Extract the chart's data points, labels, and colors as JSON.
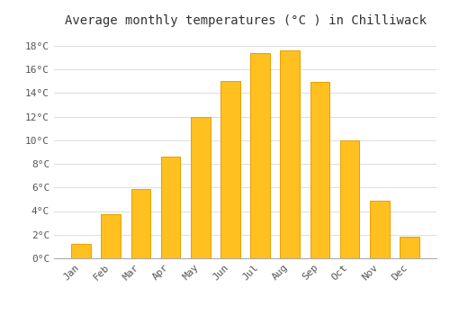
{
  "months": [
    "Jan",
    "Feb",
    "Mar",
    "Apr",
    "May",
    "Jun",
    "Jul",
    "Aug",
    "Sep",
    "Oct",
    "Nov",
    "Dec"
  ],
  "values": [
    1.2,
    3.7,
    5.9,
    8.6,
    12.0,
    15.0,
    17.4,
    17.6,
    14.9,
    10.0,
    4.9,
    1.8
  ],
  "bar_color": "#FFC020",
  "bar_edge_color": "#E8A000",
  "title": "Average monthly temperatures (°C ) in Chilliwack",
  "title_fontsize": 10,
  "ylabel_ticks": [
    "0°C",
    "2°C",
    "4°C",
    "6°C",
    "8°C",
    "10°C",
    "12°C",
    "14°C",
    "16°C",
    "18°C"
  ],
  "ytick_values": [
    0,
    2,
    4,
    6,
    8,
    10,
    12,
    14,
    16,
    18
  ],
  "ylim": [
    0,
    19.2
  ],
  "background_color": "#ffffff",
  "plot_bg_color": "#ffffff",
  "grid_color": "#dddddd",
  "tick_label_color": "#555555",
  "title_color": "#333333",
  "font_family": "monospace",
  "bar_width": 0.65
}
